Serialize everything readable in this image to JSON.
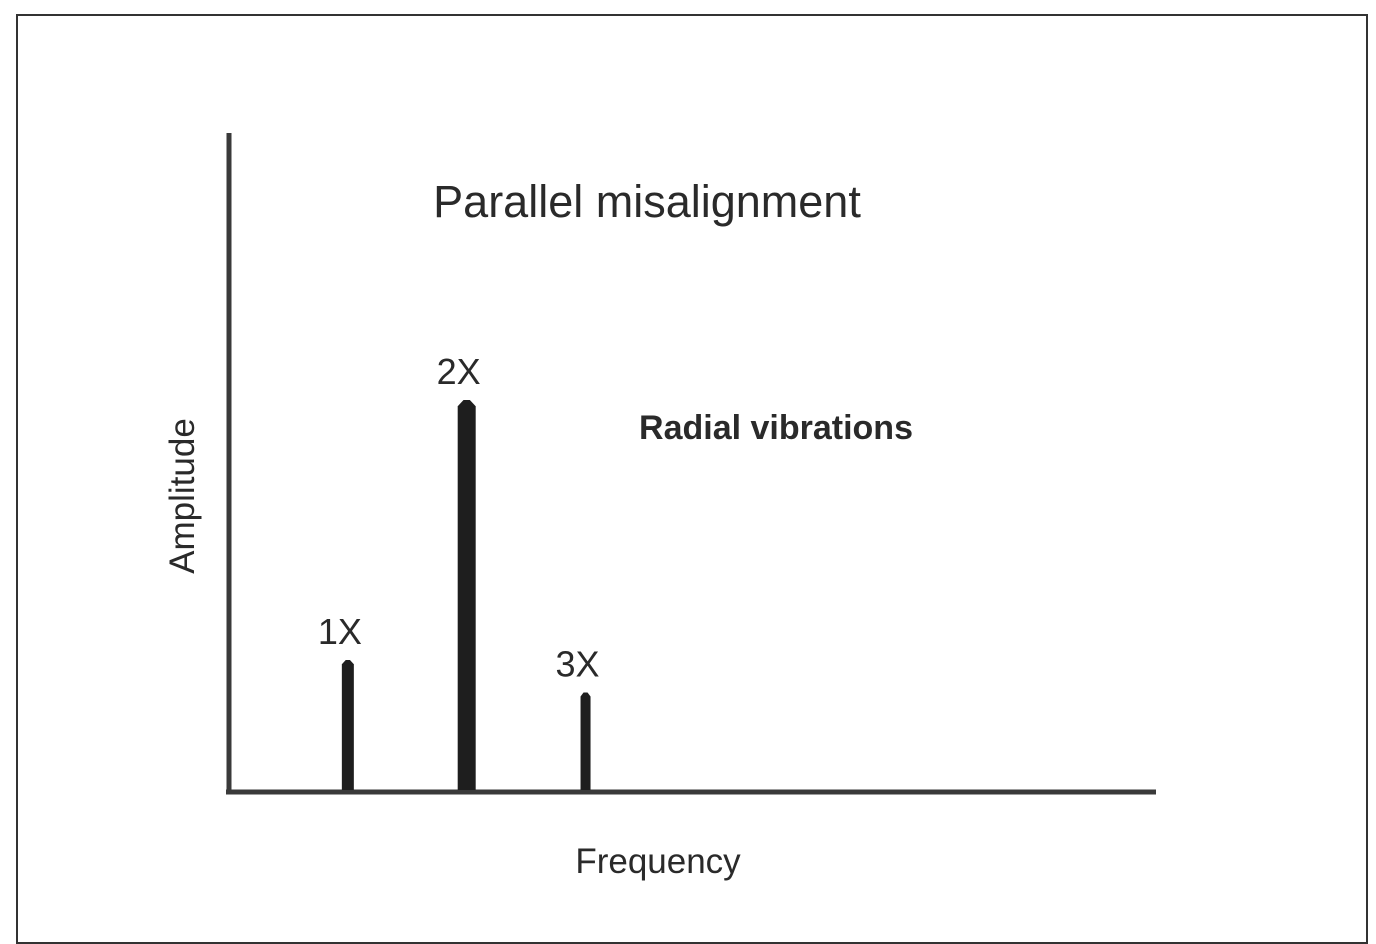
{
  "chart_data": {
    "type": "bar",
    "title": "Parallel misalignment",
    "subtitle": "Radial vibrations",
    "xlabel": "Frequency",
    "ylabel": "Amplitude",
    "categories": [
      "1X",
      "2X",
      "3X"
    ],
    "x": [
      1,
      2,
      3
    ],
    "values": [
      0.2,
      0.6,
      0.15
    ],
    "xlim": [
      0,
      7.8
    ],
    "ylim": [
      0,
      1
    ],
    "grid": false,
    "legend": "none",
    "color": "#1e1e1e"
  }
}
